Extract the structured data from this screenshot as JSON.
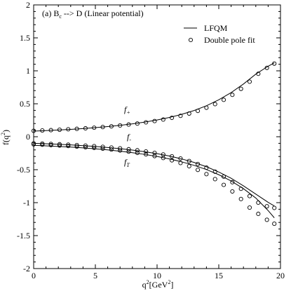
{
  "chart_data": {
    "type": "line",
    "panel_label": "(a) B",
    "panel_label_sub": "c",
    "panel_label_rest": " --> D (Linear potential)",
    "xlabel": "q",
    "xlabel_sup": "2",
    "xlabel_unit": "[GeV",
    "xlabel_unit_sup": "2",
    "xlabel_close": "]",
    "ylabel": "f(q",
    "ylabel_sup": "2",
    "ylabel_close": ")",
    "xlim": [
      0,
      20
    ],
    "ylim": [
      -2,
      2
    ],
    "xticks": [
      "0",
      "5",
      "10",
      "15",
      "20"
    ],
    "yticks": [
      "-2",
      "-1.5",
      "-1",
      "-0.5",
      "0",
      "0.5",
      "1",
      "1.5",
      "2"
    ],
    "legend": {
      "placement": "top-right",
      "line_label": "LFQM",
      "marker_label": "Double pole fit"
    },
    "curve_labels": {
      "fplus": {
        "base": "f",
        "sub": "+"
      },
      "fminus": {
        "base": "f",
        "sub": "-"
      },
      "fT": {
        "base": "f",
        "sub": "T"
      }
    },
    "series": [
      {
        "key": "fplus",
        "line": {
          "x": [
            0,
            1,
            2,
            3,
            4,
            5,
            6,
            7,
            8,
            9,
            10,
            11,
            12,
            13,
            14,
            15,
            16,
            17,
            18,
            19,
            19.5
          ],
          "y": [
            0.085,
            0.093,
            0.102,
            0.112,
            0.124,
            0.138,
            0.154,
            0.173,
            0.195,
            0.222,
            0.254,
            0.293,
            0.34,
            0.398,
            0.47,
            0.56,
            0.67,
            0.8,
            0.95,
            1.07,
            1.12
          ]
        },
        "fit": {
          "x": [
            0,
            0.7,
            1.4,
            2.1,
            2.8,
            3.5,
            4.2,
            4.9,
            5.6,
            6.3,
            7,
            7.7,
            8.4,
            9.1,
            9.8,
            10.5,
            11.2,
            11.9,
            12.6,
            13.3,
            14,
            14.7,
            15.4,
            16.1,
            16.8,
            17.5,
            18.2,
            18.9,
            19.5
          ],
          "y": [
            0.09,
            0.095,
            0.1,
            0.106,
            0.113,
            0.12,
            0.128,
            0.137,
            0.147,
            0.158,
            0.171,
            0.185,
            0.2,
            0.218,
            0.238,
            0.261,
            0.287,
            0.317,
            0.352,
            0.392,
            0.44,
            0.495,
            0.56,
            0.636,
            0.727,
            0.835,
            0.955,
            1.045,
            1.11
          ]
        }
      },
      {
        "key": "fminus",
        "line": {
          "x": [
            0,
            1,
            2,
            3,
            4,
            5,
            6,
            7,
            8,
            9,
            10,
            11,
            12,
            13,
            14,
            15,
            16,
            17,
            18,
            19,
            19.5
          ],
          "y": [
            -0.1,
            -0.107,
            -0.115,
            -0.124,
            -0.135,
            -0.148,
            -0.163,
            -0.181,
            -0.202,
            -0.227,
            -0.257,
            -0.293,
            -0.337,
            -0.39,
            -0.455,
            -0.535,
            -0.63,
            -0.745,
            -0.87,
            -0.995,
            -1.05
          ]
        },
        "fit": {
          "x": [
            0,
            0.7,
            1.4,
            2.1,
            2.8,
            3.5,
            4.2,
            4.9,
            5.6,
            6.3,
            7,
            7.7,
            8.4,
            9.1,
            9.8,
            10.5,
            11.2,
            11.9,
            12.6,
            13.3,
            14,
            14.7,
            15.4,
            16.1,
            16.8,
            17.5,
            18.2,
            18.9,
            19.5
          ],
          "y": [
            -0.1,
            -0.104,
            -0.109,
            -0.114,
            -0.12,
            -0.127,
            -0.135,
            -0.143,
            -0.153,
            -0.164,
            -0.176,
            -0.19,
            -0.206,
            -0.224,
            -0.245,
            -0.269,
            -0.297,
            -0.33,
            -0.369,
            -0.414,
            -0.468,
            -0.53,
            -0.605,
            -0.69,
            -0.79,
            -0.9,
            -1.0,
            -1.055,
            -1.08
          ]
        }
      },
      {
        "key": "fT",
        "line": {
          "x": [
            0,
            1,
            2,
            3,
            4,
            5,
            6,
            7,
            8,
            9,
            10,
            11,
            12,
            13,
            14,
            15,
            16,
            17,
            18,
            19,
            19.5
          ],
          "y": [
            -0.13,
            -0.138,
            -0.147,
            -0.157,
            -0.169,
            -0.183,
            -0.2,
            -0.219,
            -0.242,
            -0.268,
            -0.299,
            -0.336,
            -0.381,
            -0.434,
            -0.498,
            -0.576,
            -0.671,
            -0.788,
            -0.93,
            -1.12,
            -1.23
          ]
        },
        "fit": {
          "x": [
            0,
            0.7,
            1.4,
            2.1,
            2.8,
            3.5,
            4.2,
            4.9,
            5.6,
            6.3,
            7,
            7.7,
            8.4,
            9.1,
            9.8,
            10.5,
            11.2,
            11.9,
            12.6,
            13.3,
            14,
            14.7,
            15.4,
            16.1,
            16.8,
            17.5,
            18.2,
            18.9,
            19.5
          ],
          "y": [
            -0.115,
            -0.121,
            -0.127,
            -0.134,
            -0.141,
            -0.15,
            -0.159,
            -0.169,
            -0.181,
            -0.194,
            -0.209,
            -0.226,
            -0.245,
            -0.267,
            -0.293,
            -0.323,
            -0.358,
            -0.399,
            -0.447,
            -0.503,
            -0.567,
            -0.643,
            -0.73,
            -0.83,
            -0.945,
            -1.075,
            -1.17,
            -1.26,
            -1.32
          ]
        }
      }
    ]
  }
}
